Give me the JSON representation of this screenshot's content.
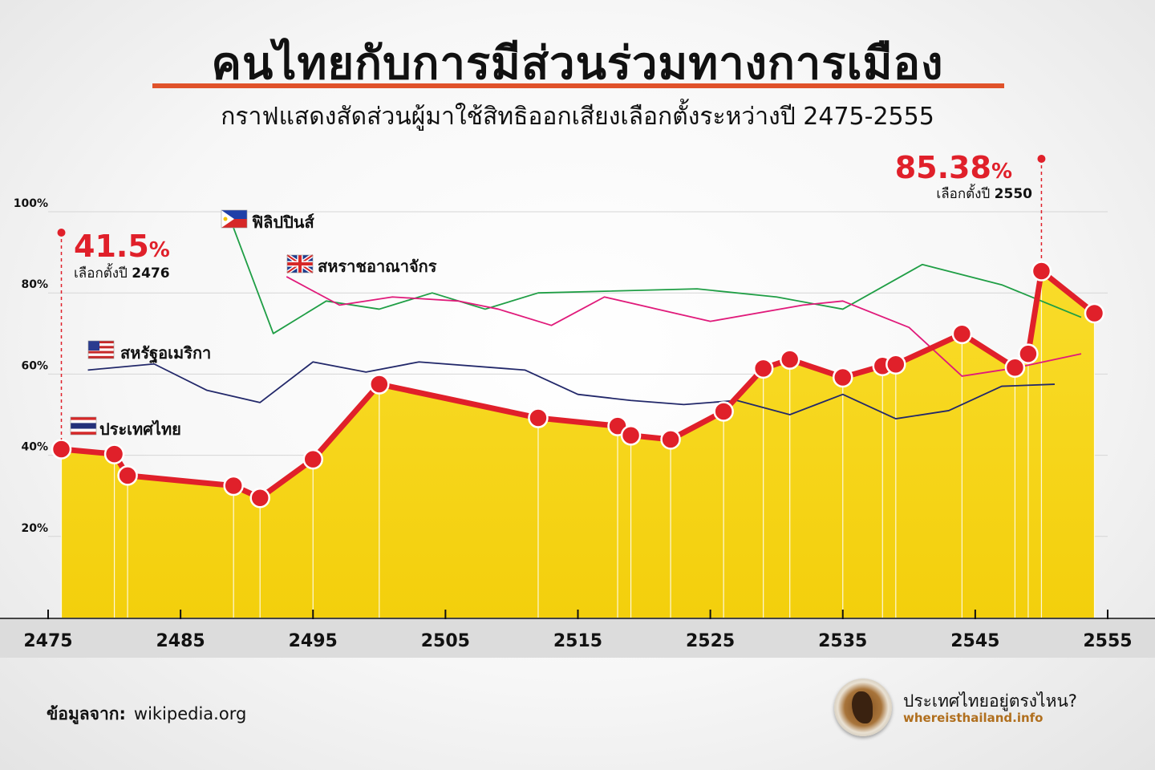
{
  "title": "คนไทยกับการมีส่วนร่วมทางการเมือง",
  "subtitle": "กราฟแสดงสัดส่วนผู้มาใช้สิทธิออกเสียงเลือกตั้งระหว่างปี 2475-2555",
  "colors": {
    "thailand_line": "#e0202a",
    "thailand_fill": "#f7d516",
    "philippines": "#1f9e45",
    "uk": "#e01a7a",
    "usa": "#22286a",
    "accent_underline": "#e0522a"
  },
  "chart_data": {
    "type": "line",
    "xlabel": "",
    "ylabel": "",
    "xlim": [
      2475,
      2555
    ],
    "ylim": [
      0,
      100
    ],
    "x_ticks": [
      "2475",
      "2485",
      "2495",
      "2505",
      "2515",
      "2525",
      "2535",
      "2545",
      "2555"
    ],
    "y_ticks": [
      "20%",
      "40%",
      "60%",
      "80%",
      "100%"
    ],
    "grid": true,
    "series": [
      {
        "name": "ประเทศไทย",
        "key": "thailand",
        "style": "area-markers",
        "points": [
          [
            2476,
            41.5
          ],
          [
            2480,
            40.3
          ],
          [
            2481,
            35.0
          ],
          [
            2489,
            32.5
          ],
          [
            2491,
            29.5
          ],
          [
            2495,
            39.0
          ],
          [
            2500,
            57.5
          ],
          [
            2512,
            49.2
          ],
          [
            2518,
            47.2
          ],
          [
            2519,
            44.9
          ],
          [
            2522,
            43.9
          ],
          [
            2526,
            50.8
          ],
          [
            2529,
            61.4
          ],
          [
            2531,
            63.6
          ],
          [
            2535,
            59.2
          ],
          [
            2538,
            62.0
          ],
          [
            2539,
            62.4
          ],
          [
            2544,
            69.9
          ],
          [
            2548,
            61.6
          ],
          [
            2549,
            65.0
          ],
          [
            2550,
            85.38
          ],
          [
            2554,
            75.0
          ]
        ]
      },
      {
        "name": "ฟิลิปปินส์",
        "key": "philippines",
        "style": "thin",
        "points": [
          [
            2489,
            96
          ],
          [
            2492,
            70
          ],
          [
            2496,
            78
          ],
          [
            2500,
            76
          ],
          [
            2504,
            80
          ],
          [
            2508,
            76
          ],
          [
            2512,
            80
          ],
          [
            2524,
            81
          ],
          [
            2530,
            79
          ],
          [
            2535,
            76
          ],
          [
            2541,
            87
          ],
          [
            2547,
            82
          ],
          [
            2553,
            74
          ]
        ]
      },
      {
        "name": "สหราชอาณาจักร",
        "key": "uk",
        "style": "thin",
        "points": [
          [
            2493,
            84
          ],
          [
            2497,
            77
          ],
          [
            2501,
            79
          ],
          [
            2506,
            78
          ],
          [
            2509,
            76
          ],
          [
            2513,
            72
          ],
          [
            2517,
            79
          ],
          [
            2521,
            76
          ],
          [
            2525,
            73
          ],
          [
            2532,
            77
          ],
          [
            2535,
            78
          ],
          [
            2540,
            71.5
          ],
          [
            2544,
            59.5
          ],
          [
            2548,
            61.5
          ],
          [
            2553,
            65
          ]
        ]
      },
      {
        "name": "สหรัฐอเมริกา",
        "key": "usa",
        "style": "thin",
        "points": [
          [
            2478,
            61
          ],
          [
            2483,
            62.5
          ],
          [
            2487,
            56
          ],
          [
            2491,
            53
          ],
          [
            2495,
            63
          ],
          [
            2499,
            60.5
          ],
          [
            2503,
            63
          ],
          [
            2511,
            61
          ],
          [
            2515,
            55
          ],
          [
            2519,
            53.5
          ],
          [
            2523,
            52.5
          ],
          [
            2527,
            53.5
          ],
          [
            2531,
            50
          ],
          [
            2535,
            55
          ],
          [
            2539,
            49
          ],
          [
            2543,
            51
          ],
          [
            2547,
            57
          ],
          [
            2551,
            57.5
          ]
        ]
      }
    ],
    "annotations": [
      {
        "value_label": "41.5",
        "unit": "%",
        "caption": "เลือกตั้งปี",
        "caption_year": "2476",
        "x": 2476,
        "y": 41.5
      },
      {
        "value_label": "85.38",
        "unit": "%",
        "caption": "เลือกตั้งปี",
        "caption_year": "2550",
        "x": 2550,
        "y": 85.38
      }
    ],
    "legend": [
      {
        "label": "ฟิลิปปินส์",
        "flag": "philippines-flag-icon"
      },
      {
        "label": "สหราชอาณาจักร",
        "flag": "uk-flag-icon"
      },
      {
        "label": "สหรัฐอเมริกา",
        "flag": "usa-flag-icon"
      },
      {
        "label": "ประเทศไทย",
        "flag": "thailand-flag-icon"
      }
    ]
  },
  "footer": {
    "source_label": "ข้อมูลจาก:",
    "source_value": "wikipedia.org",
    "brand_title": "ประเทศไทยอยู่ตรงไหน?",
    "brand_url": "whereisthailand.info",
    "brand_logo": "coffee-cup-map-icon"
  }
}
